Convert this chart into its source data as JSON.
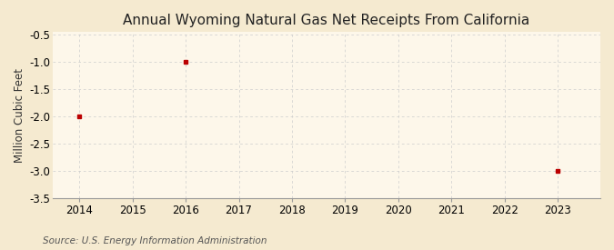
{
  "title": "Annual Wyoming Natural Gas Net Receipts From California",
  "ylabel": "Million Cubic Feet",
  "source": "Source: U.S. Energy Information Administration",
  "xlim": [
    2013.5,
    2023.8
  ],
  "ylim": [
    -3.5,
    -0.45
  ],
  "yticks": [
    -3.5,
    -3.0,
    -2.5,
    -2.0,
    -1.5,
    -1.0,
    -0.5
  ],
  "xticks": [
    2014,
    2015,
    2016,
    2017,
    2018,
    2019,
    2020,
    2021,
    2022,
    2023
  ],
  "data_x": [
    2014,
    2016,
    2023
  ],
  "data_y": [
    -2.0,
    -1.0,
    -3.0
  ],
  "point_color": "#bb0000",
  "background_color": "#f5ead0",
  "plot_bg_color": "#fdf7ea",
  "grid_color": "#cccccc",
  "title_fontsize": 11,
  "axis_fontsize": 8.5,
  "source_fontsize": 7.5,
  "ylabel_fontsize": 8.5
}
